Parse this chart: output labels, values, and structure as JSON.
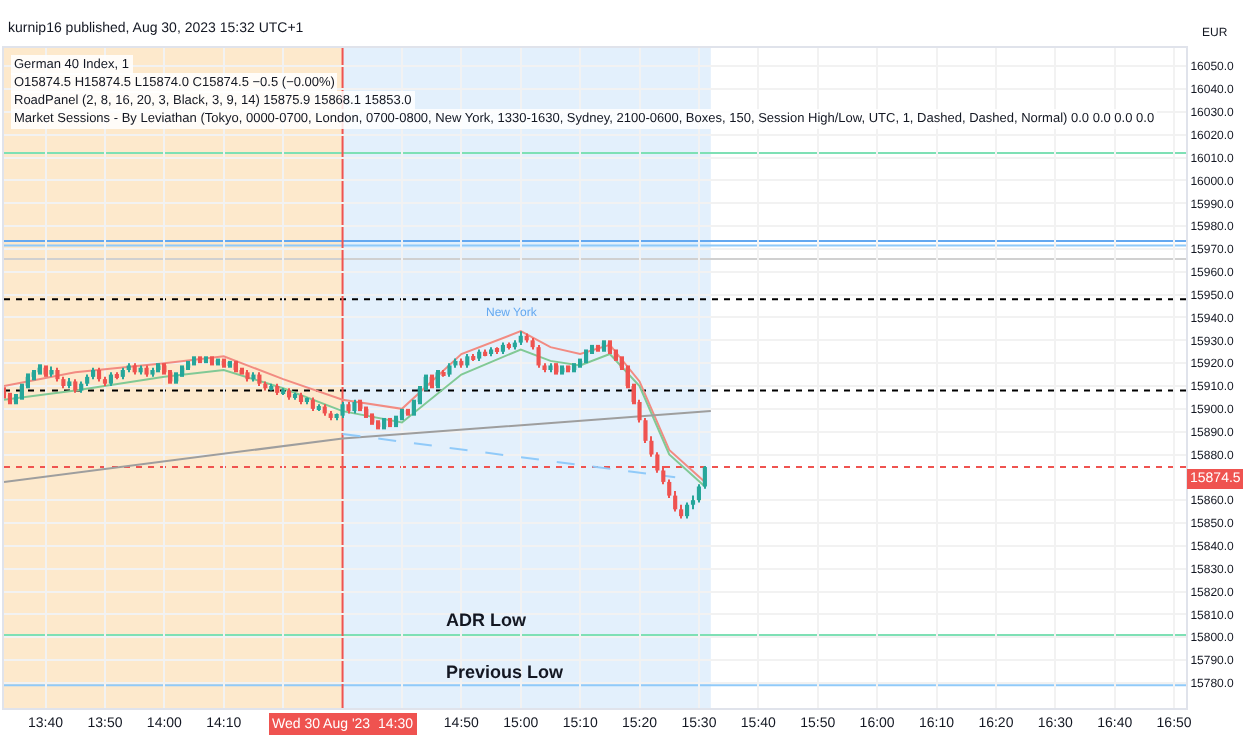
{
  "chart_data": {
    "type": "candlestick",
    "title": "German 40 Index, 1",
    "subtitle": "O15874.5 H15874.5 L15874.0 C15874.5 −0.5 (−0.00%)",
    "annotations": [
      "kurnip16 published, Aug 30, 2023 15:32 UTC+1",
      "RoadPanel (2, 8, 16, 20, 3, Black, 3, 9, 14) 15875.9 15868.1 15853.0",
      "Market Sessions - By Leviathan (Tokyo, 0000-0700, London, 0700-0800, New York, 1330-1630, Sydney, 2100-0600, Boxes, 150, Session High/Low, UTC, 1, Dashed, Dashed, Normal) 0.0 0.0 0.0 0.0",
      "EUR",
      "New York"
    ],
    "colors": [
      "#ef5350",
      "#ef5350",
      "#26a69a",
      "#26a69a",
      "#26a69a",
      "#26a69a",
      "#26a69a",
      "#ef5350",
      "#26a69a",
      "#ef5350",
      "#ef5350",
      "#26a69a",
      "#ef5350",
      "#26a69a",
      "#26a69a",
      "#26a69a",
      "#ef5350",
      "#ef5350",
      "#26a69a",
      "#ef5350",
      "#26a69a",
      "#26a69a",
      "#ef5350",
      "#26a69a",
      "#ef5350",
      "#26a69a",
      "#26a69a",
      "#ef5350",
      "#ef5350",
      "#26a69a",
      "#26a69a",
      "#26a69a",
      "#26a69a",
      "#ef5350",
      "#26a69a",
      "#ef5350",
      "#26a69a",
      "#ef5350",
      "#26a69a",
      "#ef5350",
      "#ef5350",
      "#ef5350",
      "#26a69a",
      "#ef5350",
      "#ef5350",
      "#26a69a",
      "#ef5350",
      "#26a69a",
      "#ef5350",
      "#26a69a",
      "#ef5350",
      "#26a69a",
      "#ef5350",
      "#26a69a",
      "#ef5350",
      "#ef5350",
      "#26a69a",
      "#26a69a",
      "#ef5350",
      "#26a69a",
      "#ef5350",
      "#ef5350",
      "#ef5350",
      "#ef5350",
      "#26a69a",
      "#ef5350",
      "#26a69a",
      "#26a69a",
      "#ef5350",
      "#26a69a",
      "#26a69a",
      "#26a69a",
      "#ef5350",
      "#26a69a",
      "#ef5350",
      "#26a69a",
      "#26a69a",
      "#ef5350",
      "#26a69a",
      "#ef5350",
      "#26a69a",
      "#ef5350",
      "#26a69a",
      "#ef5350",
      "#26a69a",
      "#ef5350",
      "#26a69a",
      "#26a69a",
      "#ef5350",
      "#ef5350",
      "#ef5350",
      "#ef5350",
      "#26a69a",
      "#ef5350",
      "#26a69a",
      "#ef5350",
      "#26a69a",
      "#26a69a",
      "#26a69a",
      "#26a69a",
      "#ef5350",
      "#26a69a",
      "#ef5350",
      "#ef5350",
      "#ef5350",
      "#ef5350",
      "#ef5350",
      "#ef5350",
      "#ef5350",
      "#ef5350",
      "#ef5350",
      "#ef5350",
      "#ef5350",
      "#ef5350",
      "#ef5350",
      "#26a69a",
      "#26a69a",
      "#26a69a",
      "#26a69a"
    ],
    "x": [
      "2023-08-30T13:33",
      "2023-08-30T13:34",
      "2023-08-30T13:35",
      "2023-08-30T13:36",
      "2023-08-30T13:37",
      "2023-08-30T13:38",
      "2023-08-30T13:39",
      "2023-08-30T13:40",
      "2023-08-30T13:41",
      "2023-08-30T13:42",
      "2023-08-30T13:43",
      "2023-08-30T13:44",
      "2023-08-30T13:45",
      "2023-08-30T13:46",
      "2023-08-30T13:47",
      "2023-08-30T13:48",
      "2023-08-30T13:49",
      "2023-08-30T13:50",
      "2023-08-30T13:51",
      "2023-08-30T13:52",
      "2023-08-30T13:53",
      "2023-08-30T13:54",
      "2023-08-30T13:55",
      "2023-08-30T13:56",
      "2023-08-30T13:57",
      "2023-08-30T13:58",
      "2023-08-30T13:59",
      "2023-08-30T14:00",
      "2023-08-30T14:01",
      "2023-08-30T14:02",
      "2023-08-30T14:03",
      "2023-08-30T14:04",
      "2023-08-30T14:05",
      "2023-08-30T14:06",
      "2023-08-30T14:07",
      "2023-08-30T14:08",
      "2023-08-30T14:09",
      "2023-08-30T14:10",
      "2023-08-30T14:11",
      "2023-08-30T14:12",
      "2023-08-30T14:13",
      "2023-08-30T14:14",
      "2023-08-30T14:15",
      "2023-08-30T14:16",
      "2023-08-30T14:17",
      "2023-08-30T14:18",
      "2023-08-30T14:19",
      "2023-08-30T14:20",
      "2023-08-30T14:21",
      "2023-08-30T14:22",
      "2023-08-30T14:23",
      "2023-08-30T14:24",
      "2023-08-30T14:25",
      "2023-08-30T14:26",
      "2023-08-30T14:27",
      "2023-08-30T14:28",
      "2023-08-30T14:29",
      "2023-08-30T14:30",
      "2023-08-30T14:31",
      "2023-08-30T14:32",
      "2023-08-30T14:33",
      "2023-08-30T14:34",
      "2023-08-30T14:35",
      "2023-08-30T14:36",
      "2023-08-30T14:37",
      "2023-08-30T14:38",
      "2023-08-30T14:39",
      "2023-08-30T14:40",
      "2023-08-30T14:41",
      "2023-08-30T14:42",
      "2023-08-30T14:43",
      "2023-08-30T14:44",
      "2023-08-30T14:45",
      "2023-08-30T14:46",
      "2023-08-30T14:47",
      "2023-08-30T14:48",
      "2023-08-30T14:49",
      "2023-08-30T14:50",
      "2023-08-30T14:51",
      "2023-08-30T14:52",
      "2023-08-30T14:53",
      "2023-08-30T14:54",
      "2023-08-30T14:55",
      "2023-08-30T14:56",
      "2023-08-30T14:57",
      "2023-08-30T14:58",
      "2023-08-30T14:59",
      "2023-08-30T15:00",
      "2023-08-30T15:01",
      "2023-08-30T15:02",
      "2023-08-30T15:03",
      "2023-08-30T15:04",
      "2023-08-30T15:05",
      "2023-08-30T15:06",
      "2023-08-30T15:07",
      "2023-08-30T15:08",
      "2023-08-30T15:09",
      "2023-08-30T15:10",
      "2023-08-30T15:11",
      "2023-08-30T15:12",
      "2023-08-30T15:13",
      "2023-08-30T15:14",
      "2023-08-30T15:15",
      "2023-08-30T15:16",
      "2023-08-30T15:17",
      "2023-08-30T15:18",
      "2023-08-30T15:19",
      "2023-08-30T15:20",
      "2023-08-30T15:21",
      "2023-08-30T15:22",
      "2023-08-30T15:23",
      "2023-08-30T15:24",
      "2023-08-30T15:25",
      "2023-08-30T15:26",
      "2023-08-30T15:27",
      "2023-08-30T15:28",
      "2023-08-30T15:29",
      "2023-08-30T15:30",
      "2023-08-30T15:31"
    ],
    "ohlc": [
      [
        15908,
        15909.5,
        15904.5,
        15906
      ],
      [
        15906,
        15907,
        15902,
        15903
      ],
      [
        15903,
        15906.5,
        15902,
        15905
      ],
      [
        15905,
        15911,
        15904,
        15910
      ],
      [
        15910,
        15915.5,
        15909,
        15914
      ],
      [
        15914,
        15917,
        15912.5,
        15916
      ],
      [
        15916,
        15919.5,
        15915,
        15918
      ],
      [
        15918,
        15919,
        15914,
        15915
      ],
      [
        15915,
        15918.5,
        15914,
        15917
      ],
      [
        15917,
        15918,
        15912,
        15913
      ],
      [
        15913,
        15914,
        15909,
        15910
      ],
      [
        15910,
        15913.5,
        15909,
        15912
      ],
      [
        15912,
        15913,
        15907,
        15908
      ],
      [
        15908,
        15912,
        15907,
        15911
      ],
      [
        15911,
        15915,
        15910,
        15914
      ],
      [
        15914,
        15918,
        15913,
        15917
      ],
      [
        15917,
        15918,
        15912,
        15913
      ],
      [
        15913,
        15914,
        15910,
        15911
      ],
      [
        15911,
        15916,
        15910,
        15915
      ],
      [
        15915,
        15916,
        15913,
        15914
      ],
      [
        15914,
        15918,
        15913,
        15917
      ],
      [
        15917,
        15920,
        15916,
        15919
      ],
      [
        15919,
        15920,
        15915,
        15916
      ],
      [
        15916,
        15919,
        15915,
        15918
      ],
      [
        15918,
        15919,
        15914,
        15915
      ],
      [
        15915,
        15918,
        15914,
        15917
      ],
      [
        15917,
        15920,
        15916,
        15919
      ],
      [
        15919,
        15920,
        15915,
        15916
      ],
      [
        15916,
        15917,
        15911,
        15912
      ],
      [
        15912,
        15916,
        15911,
        15915
      ],
      [
        15915,
        15919,
        15914,
        15918
      ],
      [
        15918,
        15921,
        15917,
        15920
      ],
      [
        15920,
        15923,
        15919,
        15922
      ],
      [
        15922,
        15923,
        15920,
        15921
      ],
      [
        15921,
        15923,
        15920,
        15922
      ],
      [
        15922,
        15923,
        15919,
        15920
      ],
      [
        15920,
        15922,
        15919,
        15921
      ],
      [
        15921,
        15922,
        15918,
        15919
      ],
      [
        15919,
        15921,
        15918,
        15920
      ],
      [
        15920,
        15921,
        15916,
        15917
      ],
      [
        15917,
        15918,
        15915,
        15916
      ],
      [
        15916,
        15917,
        15912,
        15913
      ],
      [
        15913,
        15916,
        15912,
        15915
      ],
      [
        15915,
        15916,
        15910,
        15911
      ],
      [
        15911,
        15912,
        15908,
        15909
      ],
      [
        15909,
        15911,
        15908,
        15910
      ],
      [
        15910,
        15911,
        15906,
        15907
      ],
      [
        15907,
        15909,
        15906,
        15908
      ],
      [
        15908,
        15909,
        15904,
        15905
      ],
      [
        15905,
        15907,
        15904,
        15906
      ],
      [
        15906,
        15907,
        15902,
        15903
      ],
      [
        15903,
        15905,
        15902,
        15904
      ],
      [
        15904,
        15905,
        15899,
        15900
      ],
      [
        15900,
        15902,
        15899,
        15901
      ],
      [
        15901,
        15902,
        15897,
        15898
      ],
      [
        15898,
        15899,
        15895,
        15896
      ],
      [
        15896,
        15898,
        15895,
        15897
      ],
      [
        15897,
        15903,
        15896,
        15902
      ],
      [
        15902,
        15903,
        15898,
        15899
      ],
      [
        15899,
        15904,
        15898,
        15903
      ],
      [
        15903,
        15904,
        15899,
        15900
      ],
      [
        15900,
        15901,
        15896,
        15897
      ],
      [
        15897,
        15898,
        15893,
        15894
      ],
      [
        15894,
        15895,
        15891,
        15892
      ],
      [
        15892,
        15896,
        15891,
        15895
      ],
      [
        15895,
        15896,
        15892,
        15893
      ],
      [
        15893,
        15897,
        15892,
        15896
      ],
      [
        15896,
        15900,
        15895,
        15899
      ],
      [
        15899,
        15900,
        15897,
        15898
      ],
      [
        15898,
        15904,
        15897,
        15903
      ],
      [
        15903,
        15910,
        15902,
        15909
      ],
      [
        15909,
        15915,
        15908,
        15914
      ],
      [
        15914,
        15915,
        15909,
        15910
      ],
      [
        15910,
        15917,
        15909,
        15916
      ],
      [
        15916,
        15917,
        15914,
        15915
      ],
      [
        15915,
        15920,
        15914,
        15919
      ],
      [
        15919,
        15922,
        15918,
        15921
      ],
      [
        15921,
        15922,
        15918,
        15919
      ],
      [
        15919,
        15924,
        15918,
        15923
      ],
      [
        15923,
        15924,
        15921,
        15922
      ],
      [
        15922,
        15926,
        15921,
        15925
      ],
      [
        15925,
        15926,
        15923,
        15924
      ],
      [
        15924,
        15927,
        15923,
        15926
      ],
      [
        15926,
        15927,
        15924,
        15925
      ],
      [
        15925,
        15929,
        15924,
        15928
      ],
      [
        15928,
        15929,
        15926,
        15927
      ],
      [
        15927,
        15930,
        15926,
        15929
      ],
      [
        15929,
        15934,
        15928,
        15932
      ],
      [
        15932,
        15933,
        15929,
        15930
      ],
      [
        15930,
        15931,
        15926,
        15927
      ],
      [
        15927,
        15928,
        15918,
        15919
      ],
      [
        15919,
        15920,
        15916,
        15917
      ],
      [
        15917,
        15920,
        15916,
        15919
      ],
      [
        15919,
        15920,
        15915,
        15916
      ],
      [
        15916,
        15919,
        15915,
        15918
      ],
      [
        15918,
        15919,
        15916,
        15917
      ],
      [
        15917,
        15920,
        15916,
        15919
      ],
      [
        15919,
        15922,
        15918,
        15921
      ],
      [
        15921,
        15926,
        15920,
        15925
      ],
      [
        15925,
        15928,
        15924,
        15927
      ],
      [
        15927,
        15928,
        15925,
        15926
      ],
      [
        15926,
        15930,
        15925,
        15929
      ],
      [
        15929,
        15930,
        15924,
        15925
      ],
      [
        15925,
        15926,
        15921,
        15922
      ],
      [
        15922,
        15923,
        15917,
        15918
      ],
      [
        15918,
        15919,
        15909,
        15910
      ],
      [
        15910,
        15911,
        15902,
        15903
      ],
      [
        15903,
        15904,
        15894,
        15895
      ],
      [
        15895,
        15896,
        15885,
        15886
      ],
      [
        15886,
        15888,
        15879,
        15880
      ],
      [
        15880,
        15881,
        15872,
        15873
      ],
      [
        15873,
        15875,
        15867,
        15868
      ],
      [
        15868,
        15869,
        15861,
        15862
      ],
      [
        15862,
        15864,
        15855,
        15856
      ],
      [
        15856,
        15858,
        15852,
        15853
      ],
      [
        15853,
        15859,
        15852,
        15858
      ],
      [
        15858,
        15862,
        15856,
        15860
      ],
      [
        15860,
        15867,
        15859,
        15866
      ],
      [
        15866,
        15875,
        15865,
        15874.5
      ]
    ],
    "series": [
      {
        "type": "line",
        "color": "#f28b82",
        "x": [
          "2023-08-30T13:33",
          "2023-08-30T13:45",
          "2023-08-30T14:00",
          "2023-08-30T14:10",
          "2023-08-30T14:20",
          "2023-08-30T14:30",
          "2023-08-30T14:40",
          "2023-08-30T14:50",
          "2023-08-30T15:00",
          "2023-08-30T15:05",
          "2023-08-30T15:10",
          "2023-08-30T15:15",
          "2023-08-30T15:20",
          "2023-08-30T15:25",
          "2023-08-30T15:31"
        ],
        "values": [
          15910,
          15916,
          15920,
          15923,
          15913,
          15904,
          15900,
          15924,
          15934,
          15927,
          15924,
          15928,
          15912,
          15882,
          15868
        ]
      },
      {
        "type": "line",
        "color": "#81c995",
        "x": [
          "2023-08-30T13:33",
          "2023-08-30T13:45",
          "2023-08-30T14:00",
          "2023-08-30T14:10",
          "2023-08-30T14:20",
          "2023-08-30T14:30",
          "2023-08-30T14:40",
          "2023-08-30T14:50",
          "2023-08-30T15:00",
          "2023-08-30T15:05",
          "2023-08-30T15:10",
          "2023-08-30T15:15",
          "2023-08-30T15:20",
          "2023-08-30T15:25",
          "2023-08-30T15:31"
        ],
        "values": [
          15904,
          15908,
          15914,
          15917,
          15909,
          15899,
          15894,
          15915,
          15926,
          15921,
          15919,
          15924,
          15910,
          15880,
          15866
        ]
      },
      {
        "type": "line",
        "color": "#9e9e9e",
        "x": [
          "2023-08-30T13:33",
          "2023-08-30T14:30",
          "2023-08-30T15:32"
        ],
        "values": [
          15868,
          15887,
          15899
        ]
      },
      {
        "type": "line",
        "color": "#90caf9",
        "line_style": "dashed",
        "x": [
          "2023-08-30T14:30",
          "2023-08-30T15:26"
        ],
        "values": [
          15889,
          15870
        ]
      }
    ],
    "bands": [
      {
        "axis": "x",
        "from": "2023-08-30T13:33",
        "to": "2023-08-30T14:30",
        "color": "#fde9cc"
      },
      {
        "axis": "x",
        "from": "2023-08-30T14:30",
        "to": "2023-08-30T15:32",
        "color": "#e3f0fc"
      }
    ],
    "ref_lines": [
      {
        "axis": "y",
        "value": 16012,
        "color": "#7ee0b5"
      },
      {
        "axis": "y",
        "value": 15973.5,
        "color": "#64a8f0"
      },
      {
        "axis": "y",
        "value": 15971.5,
        "color": "#90caf9"
      },
      {
        "axis": "y",
        "value": 15965.6,
        "color": "#d0d0d0"
      },
      {
        "axis": "y",
        "value": 15948,
        "color": "#000000",
        "line_style": "dotted"
      },
      {
        "axis": "y",
        "value": 15908,
        "color": "#000000",
        "line_style": "dotted"
      },
      {
        "axis": "y",
        "value": 15874.5,
        "color": "#ef5350",
        "line_style": "dotted",
        "label": "15874.5"
      },
      {
        "axis": "y",
        "value": 15801,
        "color": "#7ee0b5",
        "label": "ADR Low"
      },
      {
        "axis": "y",
        "value": 15779,
        "color": "#90caf9",
        "label": "Previous Low"
      },
      {
        "axis": "x",
        "value": "2023-08-30T14:30",
        "color": "#ef5350",
        "label": "Wed 30 Aug '23  14:30"
      }
    ],
    "xlim": [
      "2023-08-30T13:33",
      "2023-08-30T16:52"
    ],
    "xticks": [
      {
        "value": "2023-08-30T13:40",
        "label": "13:40"
      },
      {
        "value": "2023-08-30T13:50",
        "label": "13:50"
      },
      {
        "value": "2023-08-30T14:00",
        "label": "14:00"
      },
      {
        "value": "2023-08-30T14:10",
        "label": "14:10"
      },
      {
        "value": "2023-08-30T14:20",
        "label": null
      },
      {
        "value": "2023-08-30T14:40",
        "label": null
      },
      {
        "value": "2023-08-30T14:50",
        "label": "14:50"
      },
      {
        "value": "2023-08-30T15:00",
        "label": "15:00"
      },
      {
        "value": "2023-08-30T15:10",
        "label": "15:10"
      },
      {
        "value": "2023-08-30T15:20",
        "label": "15:20"
      },
      {
        "value": "2023-08-30T15:30",
        "label": "15:30"
      },
      {
        "value": "2023-08-30T15:40",
        "label": "15:40"
      },
      {
        "value": "2023-08-30T15:50",
        "label": "15:50"
      },
      {
        "value": "2023-08-30T16:00",
        "label": "16:00"
      },
      {
        "value": "2023-08-30T16:10",
        "label": "16:10"
      },
      {
        "value": "2023-08-30T16:20",
        "label": "16:20"
      },
      {
        "value": "2023-08-30T16:30",
        "label": "16:30"
      },
      {
        "value": "2023-08-30T16:40",
        "label": "16:40"
      },
      {
        "value": "2023-08-30T16:50",
        "label": "16:50"
      }
    ],
    "ylim": [
      15769,
      16058
    ],
    "yticks": [
      {
        "value": 15780,
        "label": "15780.0"
      },
      {
        "value": 15790,
        "label": "15790.0"
      },
      {
        "value": 15800,
        "label": "15800.0"
      },
      {
        "value": 15810,
        "label": "15810.0"
      },
      {
        "value": 15820,
        "label": "15820.0"
      },
      {
        "value": 15830,
        "label": "15830.0"
      },
      {
        "value": 15840,
        "label": "15840.0"
      },
      {
        "value": 15850,
        "label": "15850.0"
      },
      {
        "value": 15860,
        "label": "15860.0"
      },
      {
        "value": 15880,
        "label": "15880.0"
      },
      {
        "value": 15890,
        "label": "15890.0"
      },
      {
        "value": 15900,
        "label": "15900.0"
      },
      {
        "value": 15910,
        "label": "15910.0"
      },
      {
        "value": 15920,
        "label": "15920.0"
      },
      {
        "value": 15930,
        "label": "15930.0"
      },
      {
        "value": 15940,
        "label": "15940.0"
      },
      {
        "value": 15950,
        "label": "15950.0"
      },
      {
        "value": 15960,
        "label": "15960.0"
      },
      {
        "value": 15970,
        "label": "15970.0"
      },
      {
        "value": 15980,
        "label": "15980.0"
      },
      {
        "value": 15990,
        "label": "15990.0"
      },
      {
        "value": 16000,
        "label": "16000.0"
      },
      {
        "value": 16010,
        "label": "16010.0"
      },
      {
        "value": 16020,
        "label": "16020.0"
      },
      {
        "value": 16030,
        "label": "16030.0"
      },
      {
        "value": 16040,
        "label": "16040.0"
      },
      {
        "value": 16050,
        "label": "16050.0"
      }
    ],
    "grid": true
  }
}
